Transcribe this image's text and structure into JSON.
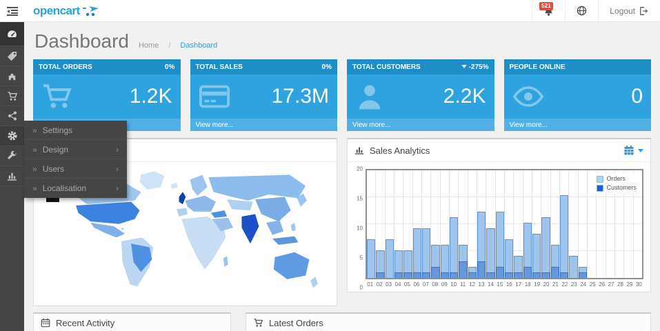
{
  "header": {
    "logo_text": "opencart",
    "notifications_badge": "521",
    "logout_label": "Logout"
  },
  "page": {
    "title": "Dashboard",
    "breadcrumb_home": "Home",
    "breadcrumb_sep": "/",
    "breadcrumb_current": "Dashboard"
  },
  "sidebar": {
    "items": [
      {
        "icon": "dashboard-icon",
        "active": true
      },
      {
        "icon": "catalog-tag-icon",
        "active": false
      },
      {
        "icon": "extensions-puzzle-icon",
        "active": false
      },
      {
        "icon": "sales-cart-icon",
        "active": false
      },
      {
        "icon": "marketing-share-icon",
        "active": false
      },
      {
        "icon": "system-gear-icon",
        "active": false,
        "open": true
      },
      {
        "icon": "tools-wrench-icon",
        "active": false
      },
      {
        "icon": "reports-chart-icon",
        "active": false
      }
    ]
  },
  "flyout": {
    "items": [
      {
        "label": "Settings",
        "has_submenu": false
      },
      {
        "label": "Design",
        "has_submenu": true
      },
      {
        "label": "Users",
        "has_submenu": true
      },
      {
        "label": "Localisation",
        "has_submenu": true
      }
    ]
  },
  "tiles": [
    {
      "title": "TOTAL ORDERS",
      "change": "0%",
      "value": "1.2K",
      "icon": "shopping-cart-icon",
      "footer": "View more..."
    },
    {
      "title": "TOTAL SALES",
      "change": "0%",
      "value": "17.3M",
      "icon": "credit-card-icon",
      "footer": "View more..."
    },
    {
      "title": "TOTAL CUSTOMERS",
      "change": "-275%",
      "change_direction": "down",
      "value": "2.2K",
      "icon": "user-icon",
      "footer": "View more..."
    },
    {
      "title": "PEOPLE ONLINE",
      "change": "",
      "value": "0",
      "icon": "eye-icon",
      "footer": "View more..."
    }
  ],
  "panels": {
    "sales_analytics_title": "Sales Analytics",
    "recent_activity_title": "Recent Activity",
    "latest_orders_title": "Latest Orders"
  },
  "chart_data": {
    "type": "bar",
    "title": "Sales Analytics",
    "categories": [
      "01",
      "02",
      "03",
      "04",
      "05",
      "06",
      "07",
      "08",
      "09",
      "10",
      "11",
      "12",
      "13",
      "14",
      "15",
      "16",
      "17",
      "18",
      "19",
      "20",
      "21",
      "22",
      "23",
      "24",
      "25",
      "26",
      "27",
      "28",
      "29",
      "30"
    ],
    "series": [
      {
        "name": "Orders",
        "color": "#a8d5f2",
        "values": [
          7,
          5,
          7,
          5,
          5,
          9,
          9,
          6,
          6,
          11,
          6,
          2,
          12,
          9,
          12,
          7,
          4,
          10,
          8,
          11,
          6,
          15,
          4,
          2,
          0,
          0,
          0,
          0,
          0,
          0
        ]
      },
      {
        "name": "Customers",
        "color": "#1e5fd6",
        "values": [
          0,
          1,
          0,
          1,
          1,
          1,
          1,
          2,
          1,
          1,
          3,
          1,
          3,
          1,
          2,
          1,
          1,
          2,
          1,
          1,
          2,
          1,
          0,
          1,
          0,
          0,
          0,
          0,
          0,
          0
        ]
      }
    ],
    "xlabel": "",
    "ylabel": "",
    "ylim": [
      0,
      20
    ],
    "yticks": [
      0,
      5,
      10,
      15,
      20
    ],
    "grid": true,
    "legend_position": "top-right"
  },
  "colors": {
    "accent_blue": "#2fa2e0",
    "tile_header_blue": "#1f8dc6",
    "badge_red": "#e64c3c",
    "sidebar_dark": "#444444",
    "link_blue": "#3498db",
    "map_dark_country": "#1c50c8",
    "map_medium_country": "#3d82e0",
    "map_light_country": "#c6ddf4"
  }
}
